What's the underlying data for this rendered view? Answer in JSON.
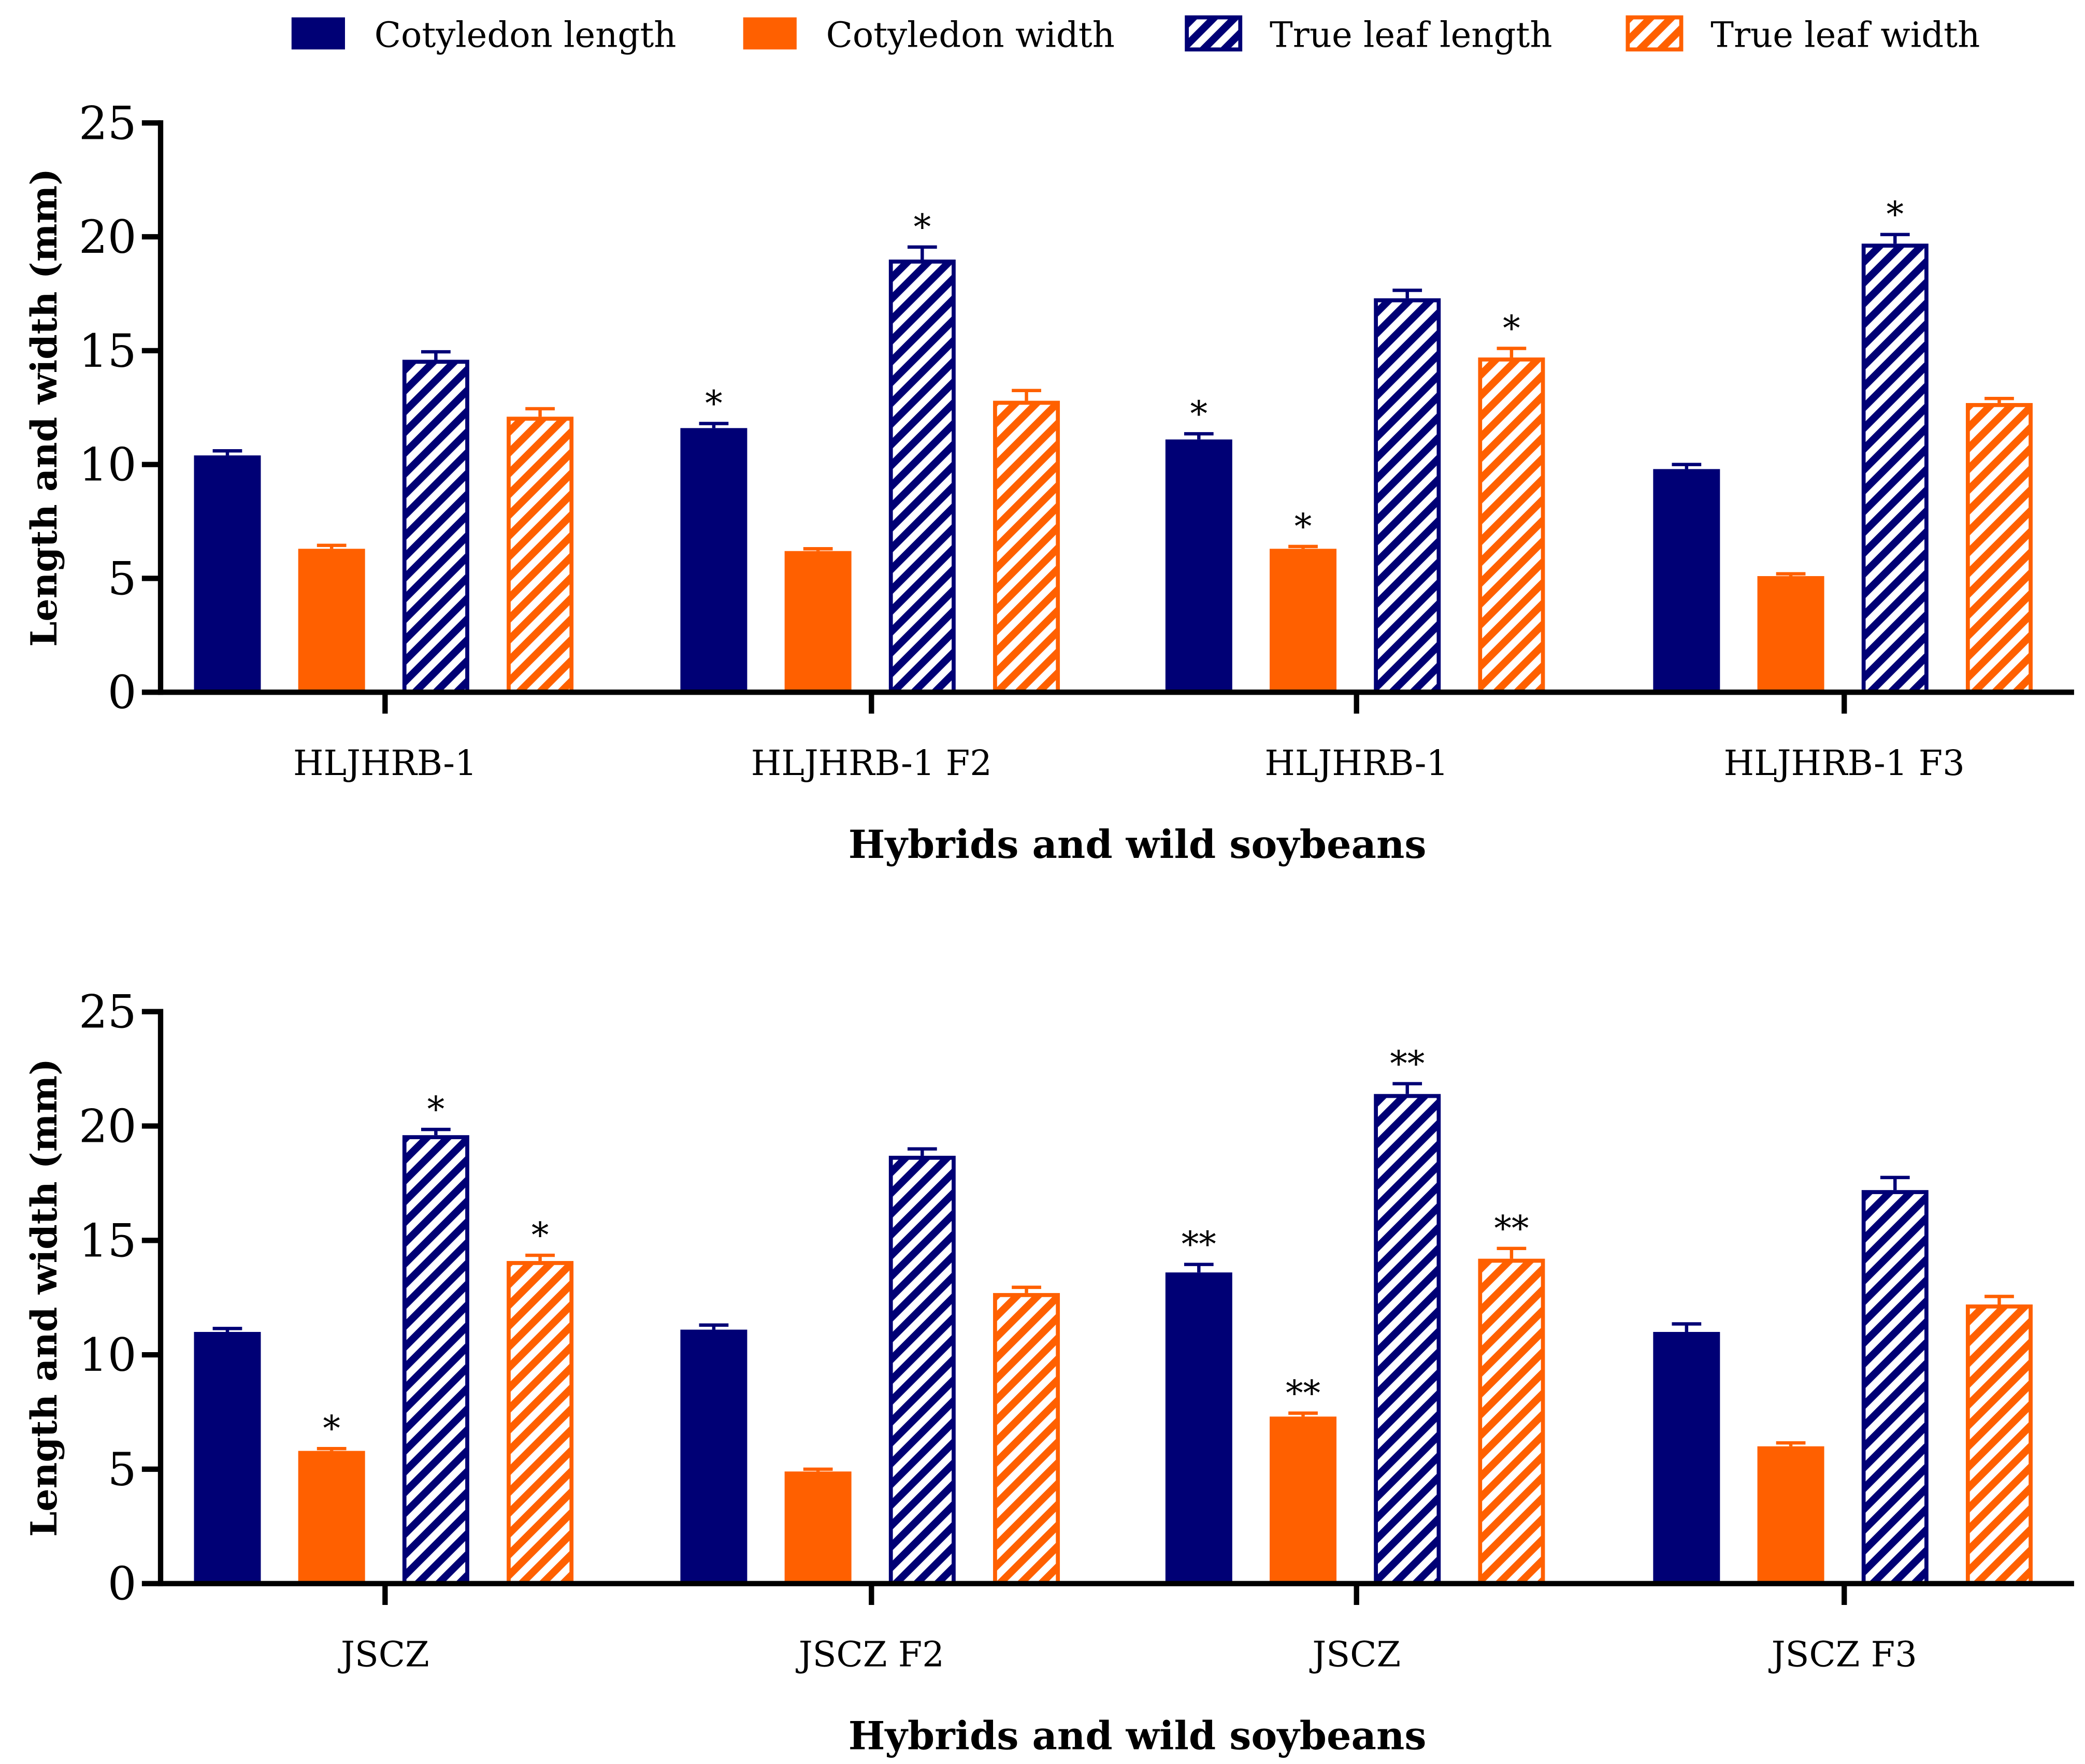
{
  "colors": {
    "navy": "#000075",
    "orange": "#FF6000"
  },
  "legend": [
    {
      "label": "Cotyledon length",
      "color": "#000075",
      "hatched": false
    },
    {
      "label": "Cotyledon width",
      "color": "#FF6000",
      "hatched": false
    },
    {
      "label": "True leaf length",
      "color": "#000075",
      "hatched": true
    },
    {
      "label": "True leaf width",
      "color": "#FF6000",
      "hatched": true
    }
  ],
  "chart_data": [
    {
      "type": "bar",
      "title": "",
      "xlabel": "Hybrids and wild soybeans",
      "ylabel": "Length and width (mm)",
      "ylim": [
        0,
        25
      ],
      "yticks": [
        "0",
        "5",
        "10",
        "15",
        "20",
        "25"
      ],
      "categories": [
        "HLJHRB-1",
        "HLJHRB-1 F2",
        "HLJHRB-1",
        "HLJHRB-1 F3"
      ],
      "series": [
        {
          "name": "Cotyledon length",
          "values": [
            10.4,
            11.6,
            11.1,
            9.8
          ],
          "errors": [
            0.2,
            0.2,
            0.25,
            0.2
          ],
          "sig": [
            "",
            "*",
            "*",
            ""
          ]
        },
        {
          "name": "Cotyledon width",
          "values": [
            6.3,
            6.2,
            6.3,
            5.1
          ],
          "errors": [
            0.15,
            0.1,
            0.1,
            0.1
          ],
          "sig": [
            "",
            "",
            "*",
            ""
          ]
        },
        {
          "name": "True leaf length",
          "values": [
            14.6,
            19.0,
            17.3,
            19.7
          ],
          "errors": [
            0.35,
            0.55,
            0.35,
            0.4
          ],
          "sig": [
            "",
            "*",
            "",
            "*"
          ]
        },
        {
          "name": "True leaf width",
          "values": [
            12.1,
            12.8,
            14.7,
            12.7
          ],
          "errors": [
            0.35,
            0.45,
            0.4,
            0.2
          ],
          "sig": [
            "",
            "",
            "*",
            ""
          ]
        }
      ]
    },
    {
      "type": "bar",
      "title": "",
      "xlabel": "Hybrids and wild soybeans",
      "ylabel": "Length and width (mm)",
      "ylim": [
        0,
        25
      ],
      "yticks": [
        "0",
        "5",
        "10",
        "15",
        "20",
        "25"
      ],
      "categories": [
        "JSCZ",
        "JSCZ F2",
        "JSCZ",
        "JSCZ F3"
      ],
      "series": [
        {
          "name": "Cotyledon length",
          "values": [
            11.0,
            11.1,
            13.6,
            11.0
          ],
          "errors": [
            0.15,
            0.2,
            0.35,
            0.35
          ],
          "sig": [
            "",
            "",
            "**",
            ""
          ]
        },
        {
          "name": "Cotyledon width",
          "values": [
            5.8,
            4.9,
            7.3,
            6.0
          ],
          "errors": [
            0.1,
            0.1,
            0.15,
            0.15
          ],
          "sig": [
            "*",
            "",
            "**",
            ""
          ]
        },
        {
          "name": "True leaf length",
          "values": [
            19.6,
            18.7,
            21.4,
            17.2
          ],
          "errors": [
            0.25,
            0.3,
            0.45,
            0.55
          ],
          "sig": [
            "*",
            "",
            "**",
            ""
          ]
        },
        {
          "name": "True leaf width",
          "values": [
            14.1,
            12.7,
            14.2,
            12.2
          ],
          "errors": [
            0.25,
            0.25,
            0.45,
            0.35
          ],
          "sig": [
            "*",
            "",
            "**",
            ""
          ]
        }
      ]
    }
  ]
}
